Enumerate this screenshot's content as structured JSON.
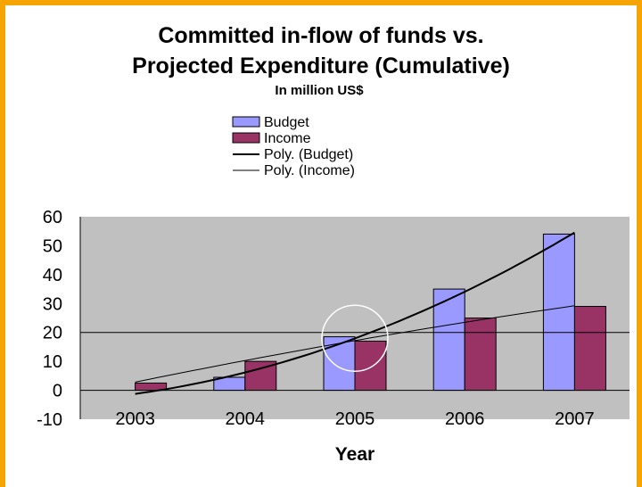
{
  "chart_data": {
    "type": "bar",
    "title_lines": [
      "Committed in-flow of funds vs.",
      "Projected Expenditure (Cumulative)"
    ],
    "subtitle": "In million US$",
    "xlabel": "Year",
    "ylabel": "",
    "categories": [
      "2003",
      "2004",
      "2005",
      "2006",
      "2007"
    ],
    "ylim": [
      -10,
      60
    ],
    "yticks": [
      60,
      50,
      40,
      30,
      20,
      10,
      0,
      -10
    ],
    "grid": false,
    "legend_position": "top-center",
    "series": [
      {
        "name": "Budget",
        "kind": "bar",
        "values": [
          0,
          4.5,
          18.5,
          35,
          54
        ]
      },
      {
        "name": "Income",
        "kind": "bar",
        "values": [
          2.5,
          10,
          17,
          25,
          29
        ]
      },
      {
        "name": "Poly. (Budget)",
        "kind": "trendline",
        "values": [
          -0.5,
          4.5,
          18.5,
          35,
          54
        ]
      },
      {
        "name": "Poly. (Income)",
        "kind": "trendline",
        "values": [
          3,
          10,
          17,
          24,
          29
        ]
      }
    ],
    "annotations": [
      {
        "type": "circle",
        "category": "2005",
        "value": 18
      }
    ]
  },
  "colors": {
    "frame": "#f6a400",
    "plot_background": "#c0c0c0",
    "budget": "#9999ff",
    "income": "#993366",
    "poly_budget": "#000000",
    "poly_income": "#000000",
    "annotation_circle": "#ffffff"
  }
}
